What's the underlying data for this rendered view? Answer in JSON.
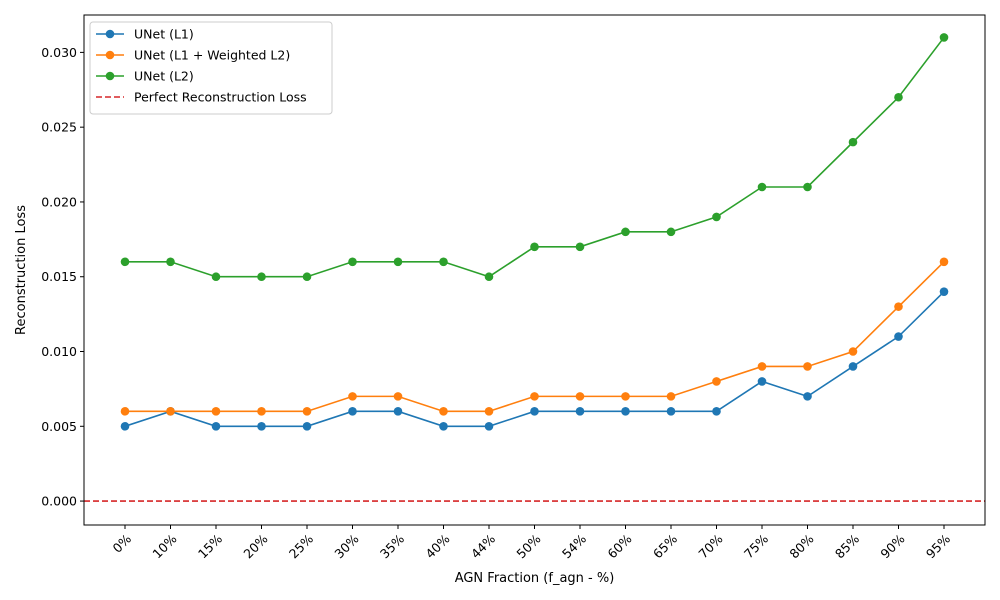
{
  "chart_data": {
    "type": "line",
    "title": "",
    "xlabel": "AGN Fraction (f_agn - %)",
    "ylabel": "Reconstruction Loss",
    "categories": [
      "0%",
      "10%",
      "15%",
      "20%",
      "25%",
      "30%",
      "35%",
      "40%",
      "44%",
      "50%",
      "54%",
      "60%",
      "65%",
      "70%",
      "75%",
      "80%",
      "85%",
      "90%",
      "95%"
    ],
    "ylim": [
      -0.0016,
      0.0325
    ],
    "yticks": [
      "0.000",
      "0.005",
      "0.010",
      "0.015",
      "0.020",
      "0.025",
      "0.030"
    ],
    "ytick_values": [
      0.0,
      0.005,
      0.01,
      0.015,
      0.02,
      0.025,
      0.03
    ],
    "grid": false,
    "legend_position": "top-left",
    "series": [
      {
        "name": "UNet (L1)",
        "color": "#1f77b4",
        "marker": "circle",
        "values": [
          0.005,
          0.006,
          0.005,
          0.005,
          0.005,
          0.006,
          0.006,
          0.005,
          0.005,
          0.006,
          0.006,
          0.006,
          0.006,
          0.006,
          0.008,
          0.007,
          0.009,
          0.011,
          0.014
        ]
      },
      {
        "name": "UNet (L1 + Weighted L2)",
        "color": "#ff7f0e",
        "marker": "circle",
        "values": [
          0.006,
          0.006,
          0.006,
          0.006,
          0.006,
          0.007,
          0.007,
          0.006,
          0.006,
          0.007,
          0.007,
          0.007,
          0.007,
          0.008,
          0.009,
          0.009,
          0.01,
          0.013,
          0.016
        ]
      },
      {
        "name": "UNet (L2)",
        "color": "#2ca02c",
        "marker": "circle",
        "values": [
          0.016,
          0.016,
          0.015,
          0.015,
          0.015,
          0.016,
          0.016,
          0.016,
          0.015,
          0.017,
          0.017,
          0.018,
          0.018,
          0.019,
          0.021,
          0.021,
          0.024,
          0.027,
          0.031
        ]
      }
    ],
    "reference_lines": [
      {
        "name": "Perfect Reconstruction Loss",
        "y": 0.0,
        "color": "#d62728",
        "style": "dashed"
      }
    ]
  }
}
